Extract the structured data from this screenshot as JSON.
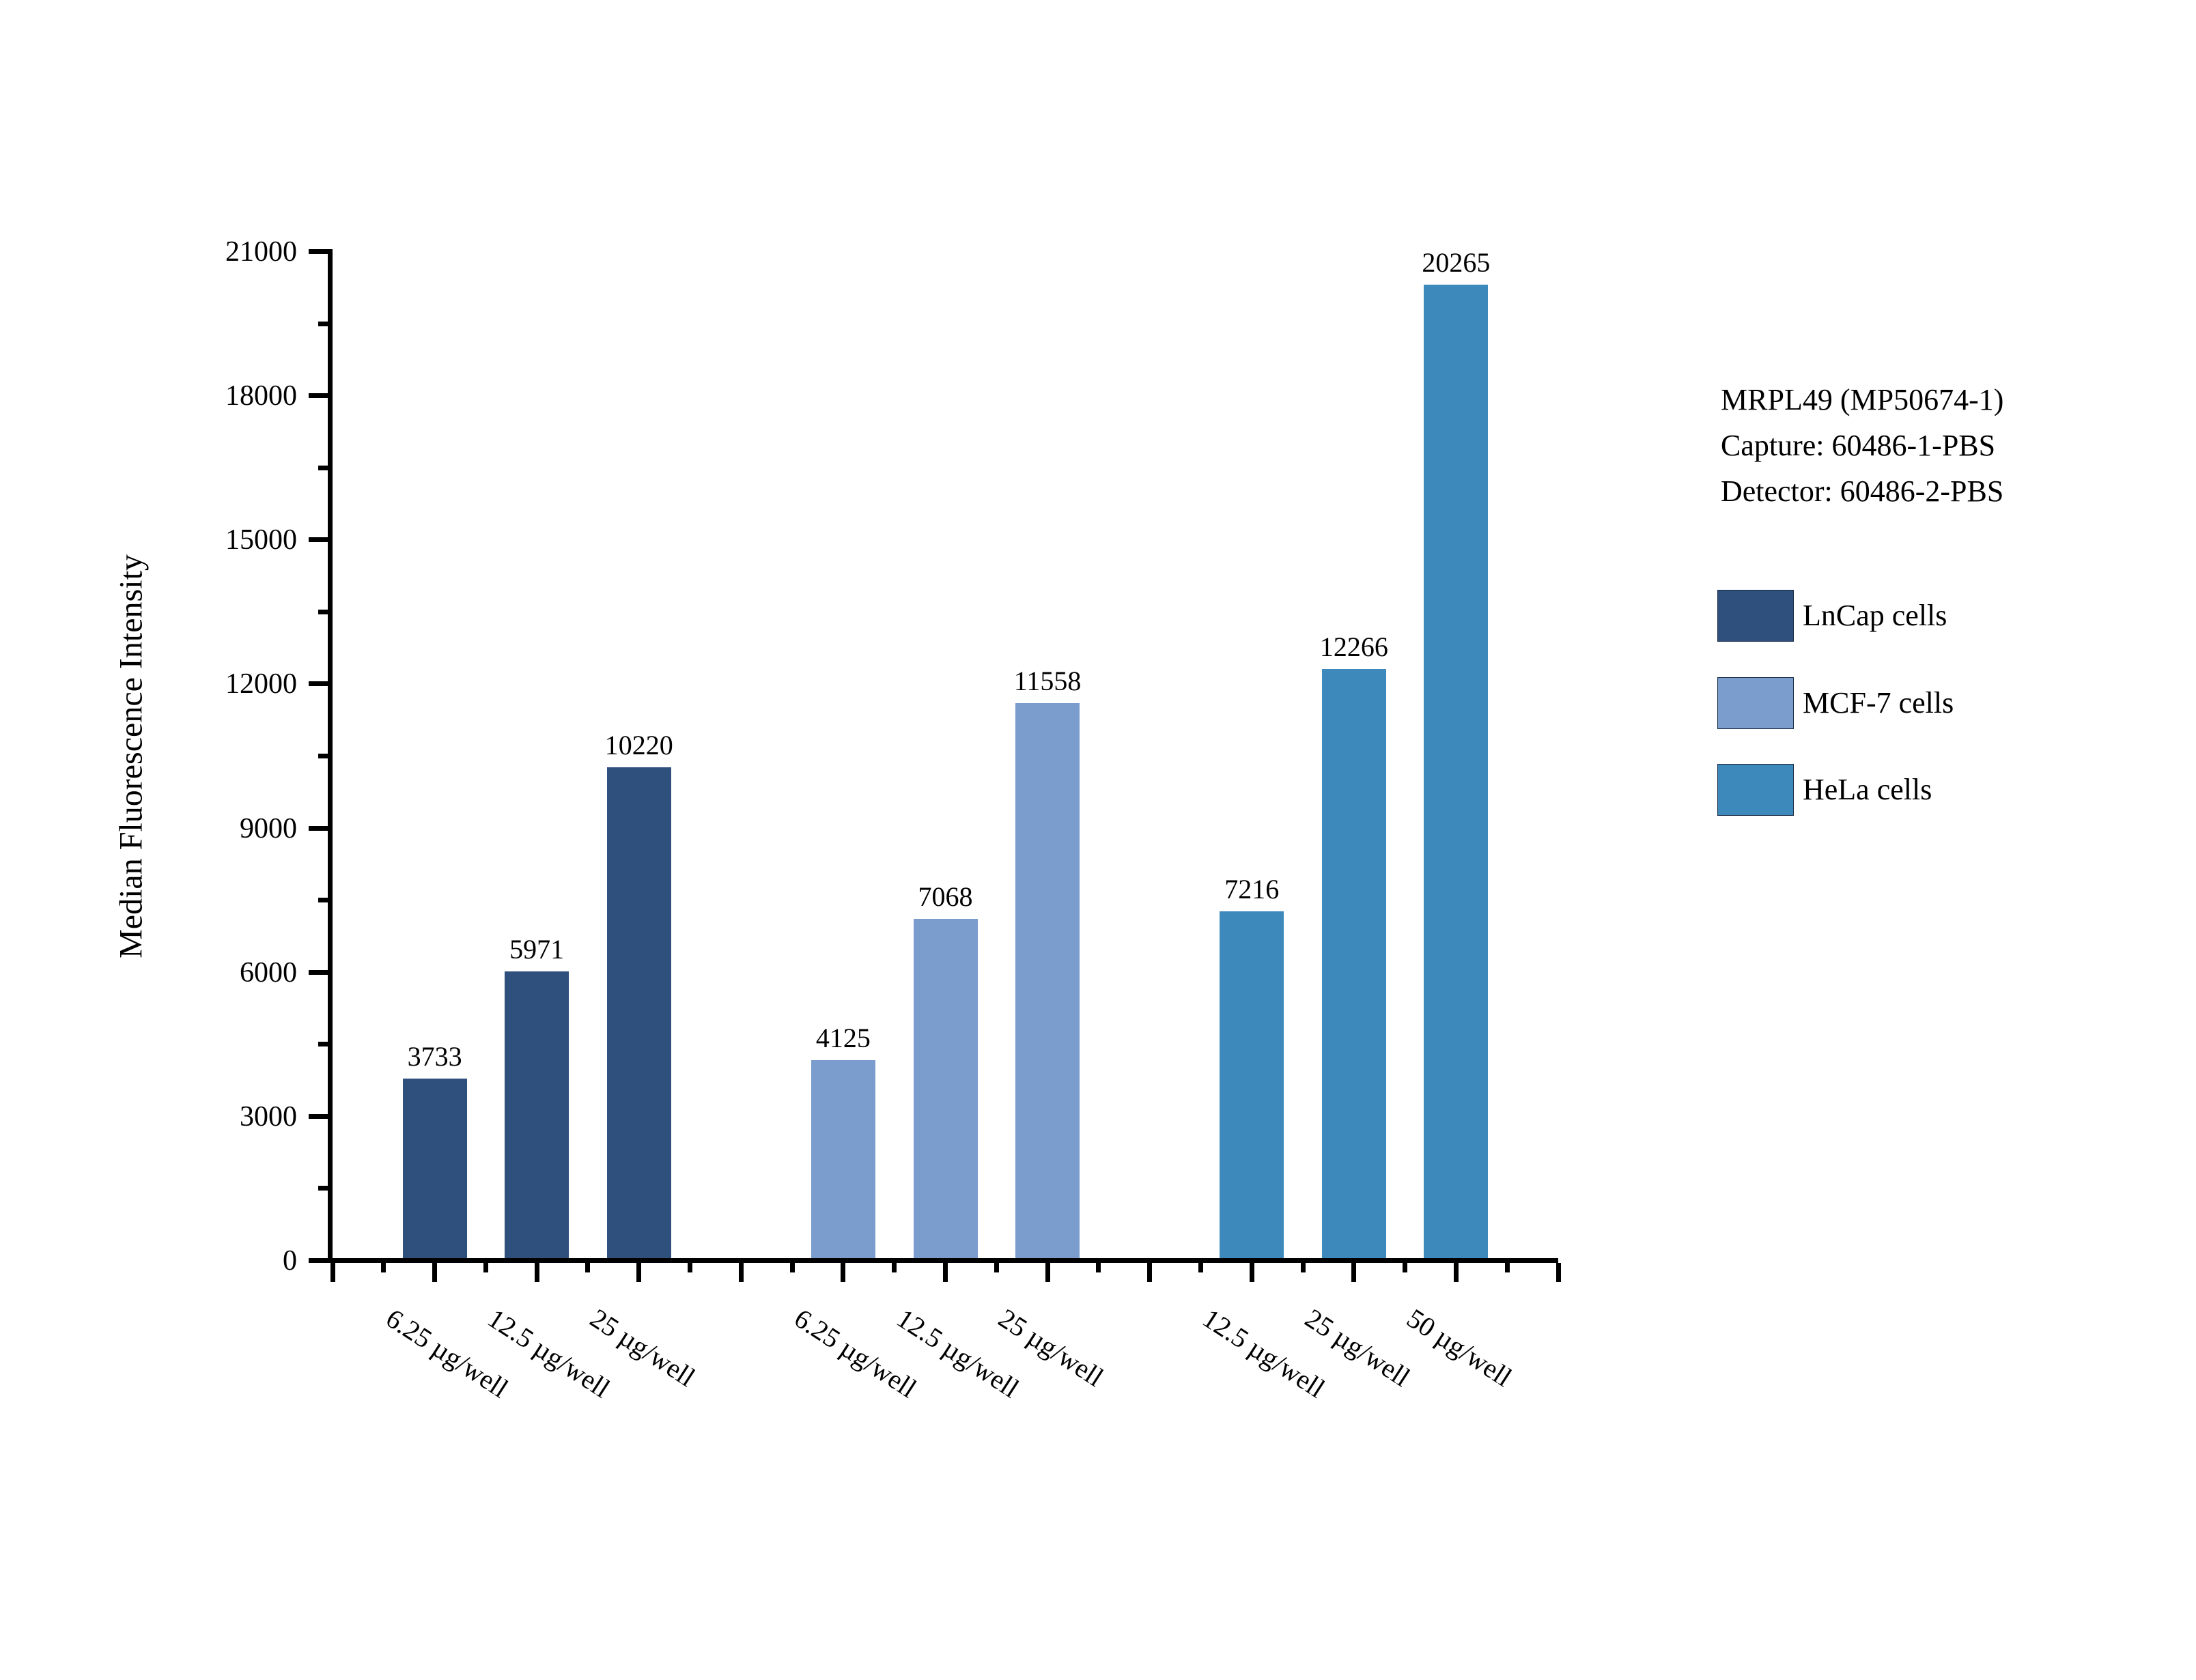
{
  "chart_data": {
    "type": "bar",
    "ylabel": "Median Fluorescence Intensity",
    "ylim": [
      0,
      21000
    ],
    "y_major_step": 3000,
    "y_minor_step": 1500,
    "grid": false,
    "legend_position": "right",
    "annotation": [
      "MRPL49 (MP50674-1)",
      "Capture: 60486-1-PBS",
      "Detector: 60486-2-PBS"
    ],
    "series": [
      {
        "name": "LnCap cells",
        "color": "#2F4F7D",
        "categories": [
          "6.25 µg/well",
          "12.5 µg/well",
          "25 µg/well"
        ],
        "values": [
          3733,
          5971,
          10220
        ]
      },
      {
        "name": "MCF-7 cells",
        "color": "#7A9DCE",
        "categories": [
          "6.25 µg/well",
          "12.5 µg/well",
          "25 µg/well"
        ],
        "values": [
          4125,
          7068,
          11558
        ]
      },
      {
        "name": "HeLa cells",
        "color": "#3E89BB",
        "categories": [
          "12.5 µg/well",
          "25 µg/well",
          "50 µg/well"
        ],
        "values": [
          7216,
          12266,
          20265
        ]
      }
    ]
  }
}
